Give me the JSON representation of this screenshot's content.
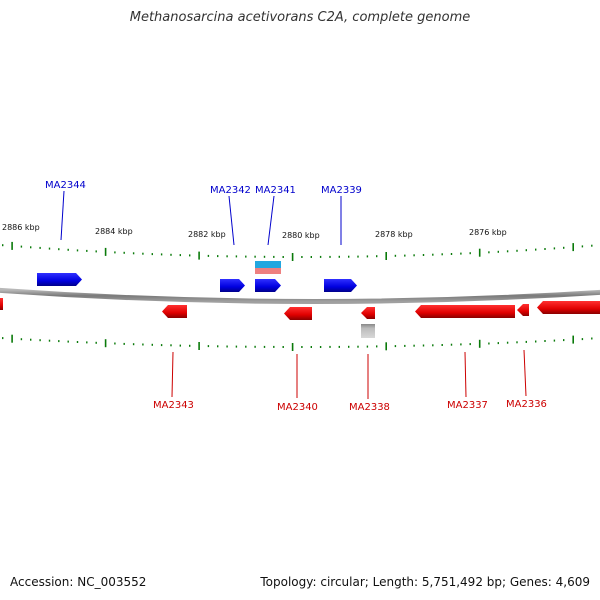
{
  "title": "Methanosarcina acetivorans C2A, complete genome",
  "footer": {
    "accession": "Accession: NC_003552",
    "info": "Topology: circular; Length: 5,751,492 bp; Genes: 4,609"
  },
  "colors": {
    "forward_gene": "#0000ee",
    "reverse_gene": "#ee0000",
    "backbone": "#8a8a8a",
    "tick": "#0a7a0a",
    "forward_label": "#0000cc",
    "reverse_label": "#cc0000",
    "rna_top": "#22a7e0",
    "rna_bottom": "#ee8080",
    "gray_feature": "#b0b0b0"
  },
  "kbp_labels": [
    "2886 kbp",
    "2884 kbp",
    "2882 kbp",
    "2880 kbp",
    "2878 kbp",
    "2876 kbp"
  ],
  "forward_genes": [
    "MA2344",
    "MA2342",
    "MA2341",
    "MA2339"
  ],
  "reverse_genes": [
    "MA2343",
    "MA2340",
    "MA2338",
    "MA2337",
    "MA2336"
  ]
}
